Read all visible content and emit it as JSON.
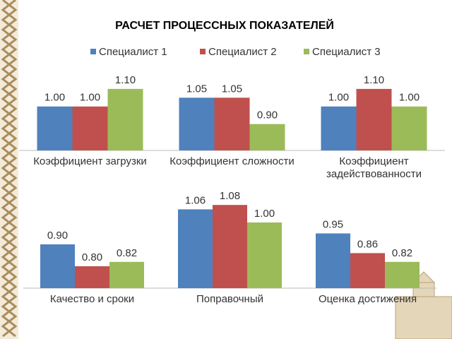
{
  "title": "РАСЧЕТ ПРОЦЕССНЫХ ПОКАЗАТЕЛЕЙ",
  "chart_data": [
    {
      "type": "bar",
      "categories": [
        "Коэффициент загрузки",
        "Коэффициент сложности",
        "Коэффициент задействованности"
      ],
      "series": [
        {
          "name": "Специалист 1",
          "color": "#4f81bd",
          "values": [
            1.0,
            1.05,
            1.0
          ],
          "value_labels": [
            "1.00",
            "1.05",
            "1.00"
          ]
        },
        {
          "name": "Специалист 2",
          "color": "#c0504d",
          "values": [
            1.0,
            1.05,
            1.1
          ],
          "value_labels": [
            "1.00",
            "1.05",
            "1.10"
          ]
        },
        {
          "name": "Специалист 3",
          "color": "#9bbb59",
          "values": [
            1.1,
            0.9,
            1.0
          ],
          "value_labels": [
            "1.10",
            "0.90",
            "1.00"
          ]
        }
      ],
      "ylim": [
        0.75,
        1.2
      ],
      "legend": "top"
    },
    {
      "type": "bar",
      "categories": [
        "Качество и сроки",
        "Поправочный",
        "Оценка достижения"
      ],
      "series": [
        {
          "color": "#4f81bd",
          "values": [
            0.9,
            1.06,
            0.95
          ],
          "value_labels": [
            "0.90",
            "1.06",
            "0.95"
          ]
        },
        {
          "color": "#c0504d",
          "values": [
            0.8,
            1.08,
            0.86
          ],
          "value_labels": [
            "0.80",
            "1.08",
            "0.86"
          ]
        },
        {
          "color": "#9bbb59",
          "values": [
            0.82,
            1.0,
            0.82
          ],
          "value_labels": [
            "0.82",
            "1.00",
            "0.82"
          ]
        }
      ],
      "ylim": [
        0.7,
        1.1
      ]
    }
  ]
}
